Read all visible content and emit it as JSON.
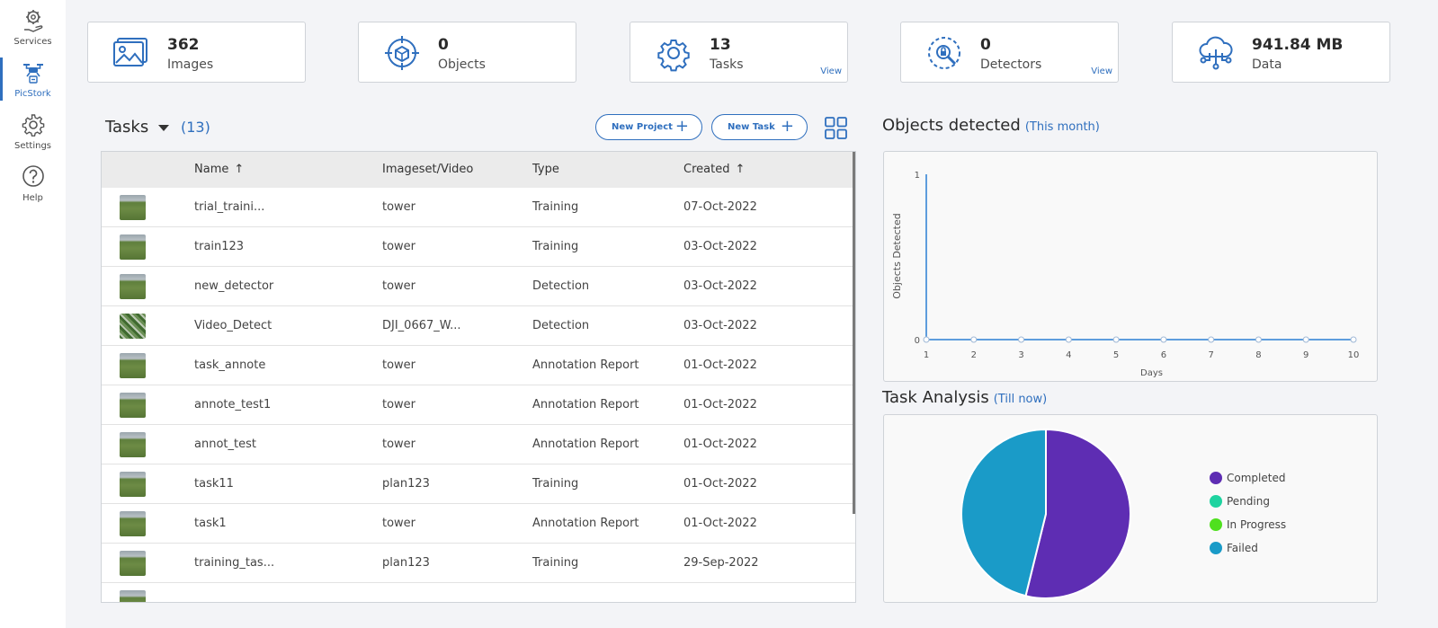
{
  "sidebar": {
    "items": [
      {
        "label": "Services",
        "icon": "services-icon"
      },
      {
        "label": "PicStork",
        "icon": "drone-icon",
        "active": true
      },
      {
        "label": "Settings",
        "icon": "gear-icon"
      },
      {
        "label": "Help",
        "icon": "help-icon"
      }
    ]
  },
  "stats": [
    {
      "value": "362",
      "label": "Images",
      "icon": "images-icon"
    },
    {
      "value": "0",
      "label": "Objects",
      "icon": "objects-icon"
    },
    {
      "value": "13",
      "label": "Tasks",
      "icon": "tasks-icon",
      "link": "View"
    },
    {
      "value": "0",
      "label": "Detectors",
      "icon": "detectors-icon",
      "link": "View"
    },
    {
      "value": "941.84 MB",
      "label": "Data",
      "icon": "cloud-data-icon"
    }
  ],
  "tasks": {
    "title": "Tasks",
    "count": "(13)",
    "new_project_label": "New Project",
    "new_task_label": "New Task",
    "columns": [
      "Name",
      "Imageset/Video",
      "Type",
      "Created"
    ],
    "rows": [
      {
        "name": "trial_traini...",
        "imageset": "tower",
        "type": "Training",
        "created": "07-Oct-2022"
      },
      {
        "name": "train123",
        "imageset": "tower",
        "type": "Training",
        "created": "03-Oct-2022"
      },
      {
        "name": "new_detector",
        "imageset": "tower",
        "type": "Detection",
        "created": "03-Oct-2022"
      },
      {
        "name": "Video_Detect",
        "imageset": "DJI_0667_W...",
        "type": "Detection",
        "created": "03-Oct-2022",
        "video": true
      },
      {
        "name": "task_annote",
        "imageset": "tower",
        "type": "Annotation Report",
        "created": "01-Oct-2022"
      },
      {
        "name": "annote_test1",
        "imageset": "tower",
        "type": "Annotation Report",
        "created": "01-Oct-2022"
      },
      {
        "name": "annot_test",
        "imageset": "tower",
        "type": "Annotation Report",
        "created": "01-Oct-2022"
      },
      {
        "name": "task11",
        "imageset": "plan123",
        "type": "Training",
        "created": "01-Oct-2022"
      },
      {
        "name": "task1",
        "imageset": "tower",
        "type": "Annotation Report",
        "created": "01-Oct-2022"
      },
      {
        "name": "training_tas...",
        "imageset": "plan123",
        "type": "Training",
        "created": "29-Sep-2022"
      }
    ]
  },
  "objects_panel": {
    "title": "Objects detected",
    "subtitle": "(This month)"
  },
  "task_panel": {
    "title": "Task Analysis",
    "subtitle": "(Till now)"
  },
  "chart_data": [
    {
      "type": "line",
      "xlabel": "Days",
      "ylabel": "Objects Detected",
      "x": [
        1,
        2,
        3,
        4,
        5,
        6,
        7,
        8,
        9,
        10
      ],
      "series": [
        {
          "values": [
            0,
            0,
            0,
            0,
            0,
            0,
            0,
            0,
            0,
            0
          ]
        }
      ],
      "ylim": [
        0,
        1
      ],
      "yticks": [
        "0",
        "1"
      ],
      "color": "#2a7fd4"
    },
    {
      "type": "pie",
      "categories": [
        "Completed",
        "Pending",
        "In Progress",
        "Failed"
      ],
      "values": [
        7,
        0,
        0,
        6
      ],
      "colors": [
        "#5e2db3",
        "#1ed3a0",
        "#4fe01e",
        "#1a9bc8"
      ],
      "legend_position": "right"
    }
  ],
  "colors": {
    "accent": "#2f6fbe"
  }
}
